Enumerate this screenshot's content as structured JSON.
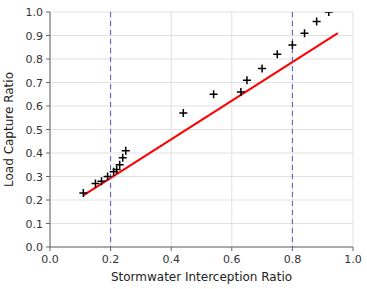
{
  "chart_data": {
    "type": "scatter",
    "x_label": "Stormwater Interception  Ratio",
    "y_label": "Load Capture Ratio",
    "series": [
      {
        "type": "scatter",
        "marker": "plus",
        "color": "black",
        "x": [
          0.11,
          0.15,
          0.17,
          0.19,
          0.21,
          0.22,
          0.23,
          0.24,
          0.25,
          0.44,
          0.54,
          0.63,
          0.65,
          0.7,
          0.75,
          0.8,
          0.84,
          0.88,
          0.92
        ],
        "values": [
          0.23,
          0.27,
          0.28,
          0.3,
          0.32,
          0.33,
          0.35,
          0.38,
          0.41,
          0.57,
          0.65,
          0.66,
          0.71,
          0.76,
          0.82,
          0.86,
          0.91,
          0.96,
          1.0
        ]
      },
      {
        "type": "line",
        "color": "red",
        "line_style": "solid",
        "x": [
          0.11,
          0.95
        ],
        "values": [
          0.22,
          0.91
        ]
      }
    ],
    "vlines": [
      {
        "x": 0.2,
        "color": "#5555cc",
        "line_style": "dashed"
      },
      {
        "x": 0.8,
        "color": "#5555cc",
        "line_style": "dashed"
      }
    ],
    "xlim": [
      0.0,
      1.0
    ],
    "ylim": [
      0.0,
      1.0
    ],
    "xticks": [
      {
        "value": 0.0,
        "label": "0.0"
      },
      0.2,
      0.4,
      0.6,
      0.8,
      {
        "value": 1.0,
        "label": "1.0"
      }
    ],
    "yticks": [
      {
        "value": 0.0,
        "label": "0.0"
      },
      0.1,
      0.2,
      0.3,
      0.4,
      0.5,
      0.6,
      0.7,
      0.8,
      0.9,
      {
        "value": 1.0,
        "label": "1.0"
      }
    ],
    "grid": true
  }
}
